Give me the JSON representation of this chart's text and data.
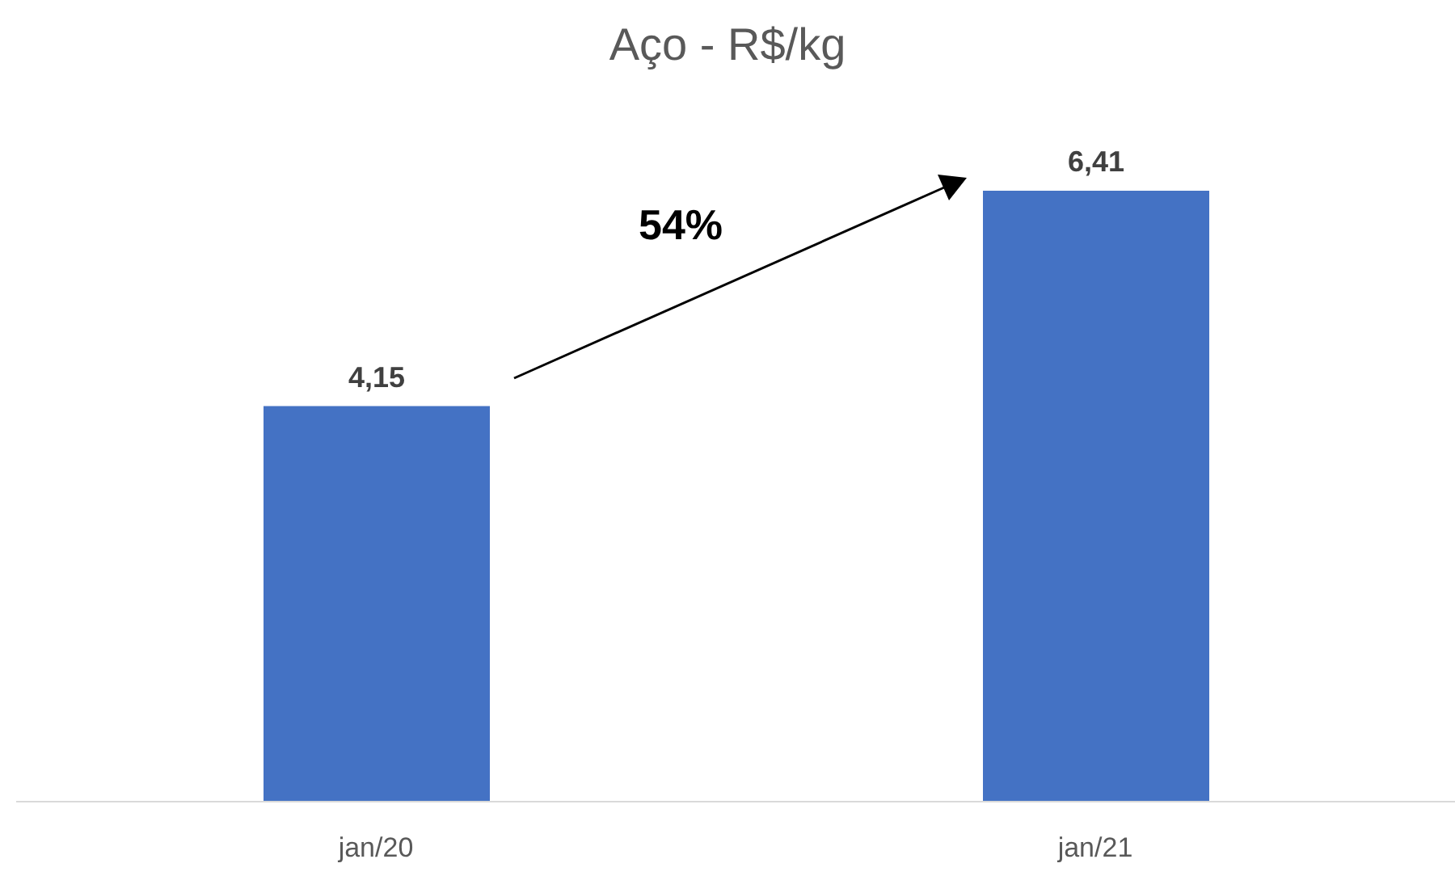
{
  "chart_data": {
    "type": "bar",
    "title": "Aço - R$/kg",
    "categories": [
      "jan/20",
      "jan/21"
    ],
    "values": [
      4.15,
      6.41
    ],
    "value_labels": [
      "4,15",
      "6,41"
    ],
    "color": "#4472c4",
    "annotations": [
      "54%"
    ]
  }
}
